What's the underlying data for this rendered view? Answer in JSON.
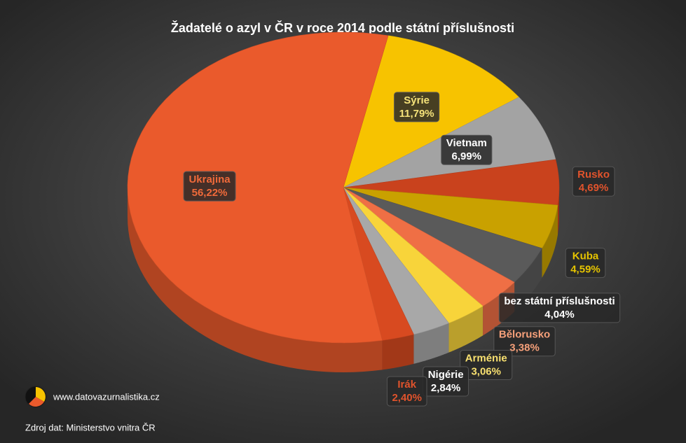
{
  "chart_data": {
    "type": "pie",
    "title": "Žadatelé  o azyl v ČR v roce 2014 podle státní  příslušnosti",
    "categories": [
      "Sýrie",
      "Vietnam",
      "Rusko",
      "Kuba",
      "bez státní příslušnosti",
      "Bělorusko",
      "Arménie",
      "Nigérie",
      "Irák",
      "Ukrajina"
    ],
    "values": [
      11.79,
      6.99,
      4.69,
      4.59,
      4.04,
      3.38,
      3.06,
      2.84,
      2.4,
      56.22
    ],
    "value_labels": [
      "11,79%",
      "6,99%",
      "4,69%",
      "4,59%",
      "4,04%",
      "3,38%",
      "3,06%",
      "2,84%",
      "2,40%",
      "56,22%"
    ],
    "colors": [
      "#f7c300",
      "#a3a3a3",
      "#c9421d",
      "#c9a100",
      "#5a5a5a",
      "#ef6f45",
      "#f8d43a",
      "#a8a8a8",
      "#d84a20",
      "#ea5a2c"
    ],
    "label_colors": [
      "#f5e27a",
      "#ffffff",
      "#e0532c",
      "#e6c400",
      "#ffffff",
      "#f6a07a",
      "#f8e070",
      "#ffffff",
      "#e0532c",
      "#f06a3a"
    ],
    "website": "www.datovazurnalistika.cz",
    "source": "Zdroj dat: Ministerstvo vnitra ČR"
  }
}
